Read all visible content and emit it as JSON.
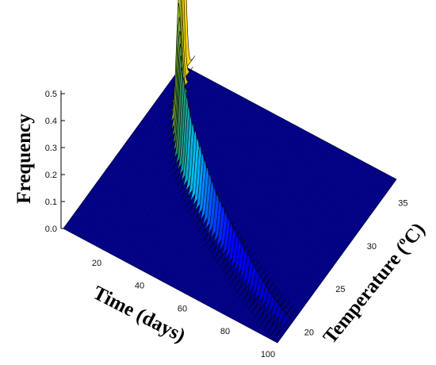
{
  "chart_data": {
    "type": "surface",
    "title": "",
    "zlabel": "Frequency",
    "xlabel": "Time (days)",
    "ylabel": "Temperature (°C)",
    "ylabel_parts": {
      "main": "Temperature (",
      "sup": "o",
      "end": "C)"
    },
    "xlim": [
      0,
      100
    ],
    "ylim": [
      18,
      37
    ],
    "zlim": [
      0,
      0.5
    ],
    "x_ticks": [
      20,
      40,
      60,
      80,
      100
    ],
    "y_ticks": [
      20,
      25,
      30,
      35
    ],
    "z_ticks": [
      "0.0",
      "0.1",
      "0.2",
      "0.3",
      "0.4",
      "0.5"
    ],
    "colormap": [
      "#00007f",
      "#0000ff",
      "#00bfff",
      "#2e8b57",
      "#9acd32",
      "#ffd700"
    ],
    "plane_color": "#00008b",
    "ridge": {
      "description_peak_time_days": [
        2,
        5,
        10,
        15,
        20,
        30,
        40,
        50,
        60,
        70,
        80,
        90,
        98
      ],
      "peak_temperature_c": [
        36.5,
        35.0,
        33.0,
        31.5,
        30.0,
        28.0,
        26.5,
        25.0,
        23.8,
        22.6,
        21.5,
        20.5,
        19.8
      ],
      "peak_frequency": [
        0.52,
        0.47,
        0.4,
        0.34,
        0.3,
        0.23,
        0.18,
        0.14,
        0.11,
        0.09,
        0.07,
        0.05,
        0.04
      ]
    }
  }
}
